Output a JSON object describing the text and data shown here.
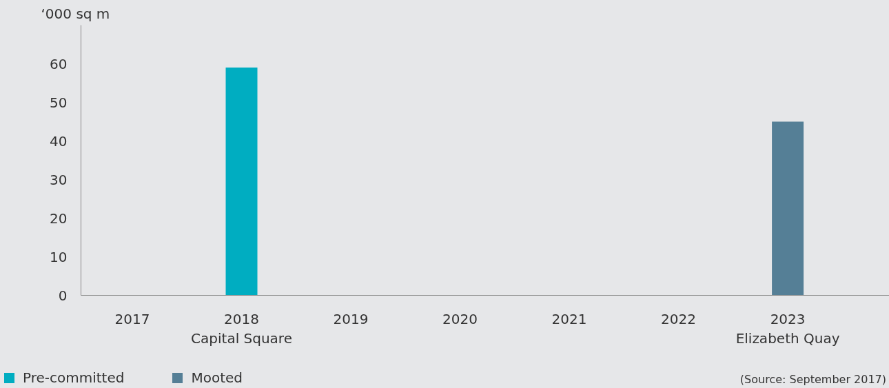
{
  "chart_data": {
    "type": "bar",
    "ylabel": "‘000 sq m",
    "categories": [
      "2017",
      "2018\nCapital Square",
      "2019",
      "2020",
      "2021",
      "2022",
      "2023\nElizabeth Quay"
    ],
    "series": [
      {
        "name": "Pre-committed",
        "color": "#00adc1",
        "values": [
          null,
          59,
          null,
          null,
          null,
          null,
          null
        ]
      },
      {
        "name": "Mooted",
        "color": "#557f96",
        "values": [
          null,
          null,
          null,
          null,
          null,
          null,
          45
        ]
      }
    ],
    "ylim": [
      0,
      70
    ],
    "yticks": [
      0,
      10,
      20,
      30,
      40,
      50,
      60
    ],
    "grid": false,
    "legend": "bottom left",
    "annotations": [
      "(Source: September 2017)"
    ]
  }
}
